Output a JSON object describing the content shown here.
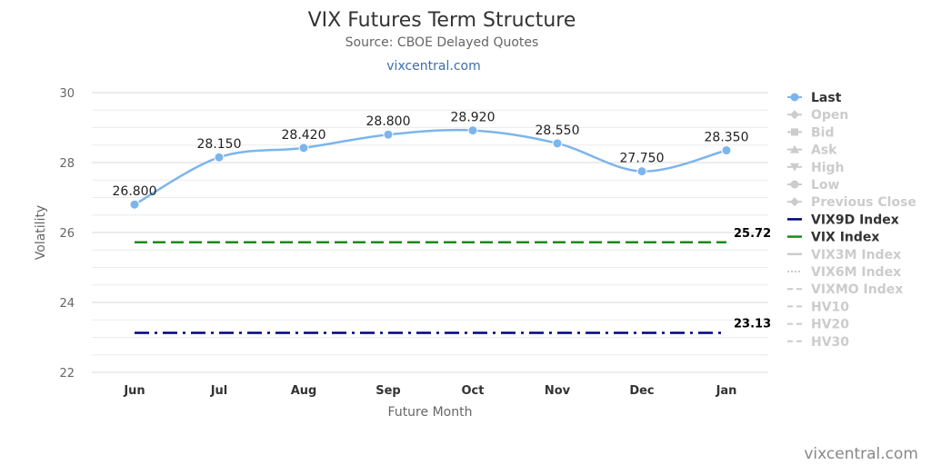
{
  "chart_data": {
    "type": "line",
    "title": "VIX Futures Term Structure",
    "subtitle": "Source: CBOE Delayed Quotes",
    "link_text": "vixcentral.com",
    "xlabel": "Future Month",
    "ylabel": "Volatility",
    "ylim": [
      22,
      30
    ],
    "yticks": [
      22,
      24,
      26,
      28,
      30
    ],
    "categories": [
      "Jun",
      "Jul",
      "Aug",
      "Sep",
      "Oct",
      "Nov",
      "Dec",
      "Jan"
    ],
    "series": [
      {
        "name": "Last",
        "values": [
          26.8,
          28.15,
          28.42,
          28.8,
          28.92,
          28.55,
          27.75,
          28.35
        ],
        "labels": [
          "26.800",
          "28.150",
          "28.420",
          "28.800",
          "28.920",
          "28.550",
          "27.750",
          "28.350"
        ],
        "color": "#7cb5ec"
      }
    ],
    "reference_lines": [
      {
        "name": "VIX Index",
        "value": 25.72,
        "label": "25.72",
        "color": "#1a8a1a",
        "style": "dashed"
      },
      {
        "name": "VIX9D Index",
        "value": 23.13,
        "label": "23.13",
        "color": "#00007f",
        "style": "dashdot"
      }
    ],
    "legend": {
      "placement": "right",
      "items": [
        {
          "name": "Last",
          "active": true,
          "color": "#7cb5ec",
          "symbol": "circle"
        },
        {
          "name": "Open",
          "active": false,
          "color": "#cccccc",
          "symbol": "diamond"
        },
        {
          "name": "Bid",
          "active": false,
          "color": "#cccccc",
          "symbol": "square"
        },
        {
          "name": "Ask",
          "active": false,
          "color": "#cccccc",
          "symbol": "triangle"
        },
        {
          "name": "High",
          "active": false,
          "color": "#cccccc",
          "symbol": "triangle-down"
        },
        {
          "name": "Low",
          "active": false,
          "color": "#cccccc",
          "symbol": "circle"
        },
        {
          "name": "Previous Close",
          "active": false,
          "color": "#cccccc",
          "symbol": "diamond"
        },
        {
          "name": "VIX9D Index",
          "active": true,
          "color": "#00007f",
          "symbol": "line"
        },
        {
          "name": "VIX Index",
          "active": true,
          "color": "#1a8a1a",
          "symbol": "line"
        },
        {
          "name": "VIX3M Index",
          "active": false,
          "color": "#cccccc",
          "symbol": "line"
        },
        {
          "name": "VIX6M Index",
          "active": false,
          "color": "#cccccc",
          "symbol": "dotted"
        },
        {
          "name": "VIXMO Index",
          "active": false,
          "color": "#cccccc",
          "symbol": "dashed"
        },
        {
          "name": "HV10",
          "active": false,
          "color": "#cccccc",
          "symbol": "dashed"
        },
        {
          "name": "HV20",
          "active": false,
          "color": "#cccccc",
          "symbol": "dashed"
        },
        {
          "name": "HV30",
          "active": false,
          "color": "#cccccc",
          "symbol": "dashed"
        }
      ]
    },
    "grid": true,
    "credit": "vixcentral.com"
  }
}
